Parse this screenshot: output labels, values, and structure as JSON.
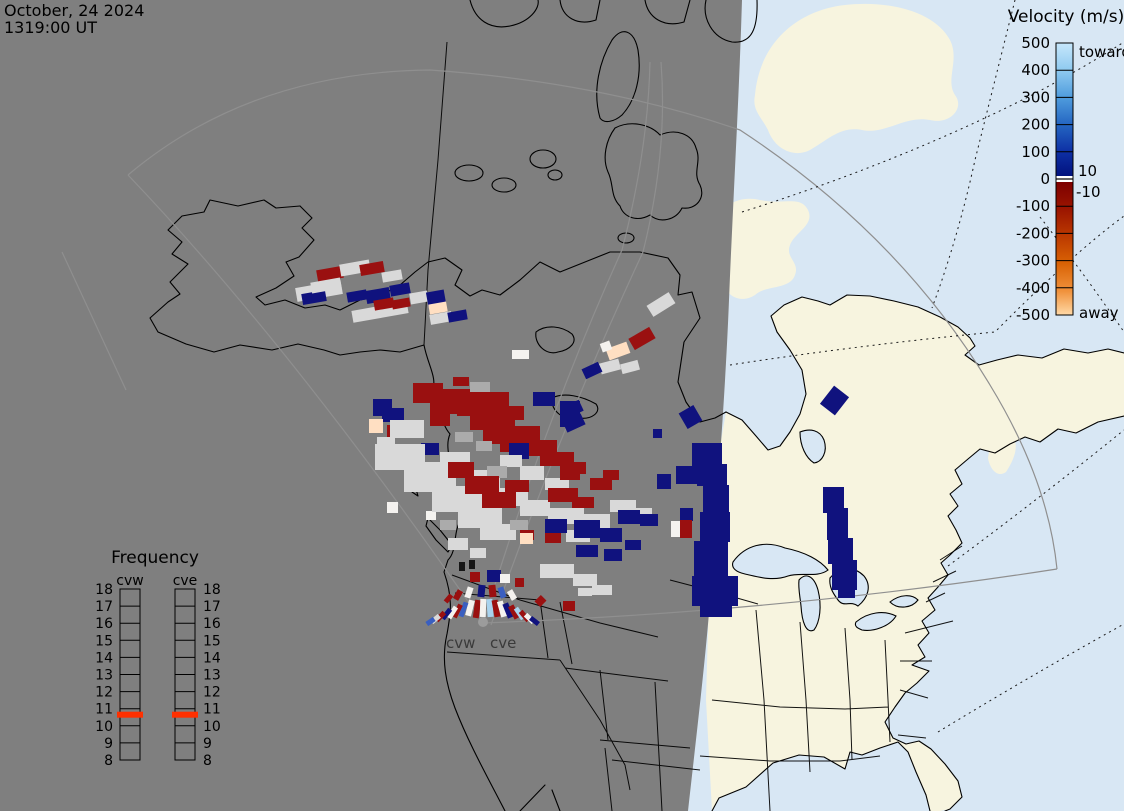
{
  "plot_title": {
    "date_line": "October, 24 2024",
    "time_line": "1319:00 UT"
  },
  "colorbar": {
    "title": "Velocity (m/s)",
    "tick_labels": [
      "500",
      "400",
      "300",
      "200",
      "100",
      "0",
      "-100",
      "-200",
      "-300",
      "-400",
      "-500"
    ],
    "toward_label": "toward",
    "away_label": "away",
    "ground_scatter_upper": "10",
    "ground_scatter_lower": "-10"
  },
  "frequency_legend": {
    "title": "Frequency",
    "columns": [
      "cvw",
      "cve"
    ],
    "tick_labels": [
      "18",
      "17",
      "16",
      "15",
      "14",
      "13",
      "12",
      "11",
      "10",
      "9",
      "8"
    ],
    "marker_value_mhz": 10.65
  },
  "map_labels": {
    "radar_west": "cvw",
    "radar_east": "cve"
  },
  "colors": {
    "night_shade": "#7f7f7f",
    "day_land": "#f7f4df",
    "day_ocean": "#d8e7f4",
    "coastline": "#000000",
    "fov_line": "#8f8f8f",
    "freq_marker": "#ff3000",
    "velocity_toward_max": "#c6e7fb",
    "velocity_toward_zero": "#02127e",
    "velocity_away_zero": "#7d0000",
    "velocity_away_max": "#ffd9a6",
    "ground_scatter": "#d9d9d9"
  },
  "cell_palette": {
    "R": "#9a1010",
    "N": "#10127e",
    "B": "#3a5fc0",
    "L": "#a9d3ee",
    "G": "#d9d9d9",
    "g": "#ababab",
    "P": "#ffdfc2",
    "W": "#f4f2ef",
    "K": "#161616"
  },
  "map_cells": [
    [
      "G",
      296,
      284,
      46,
      14,
      -10
    ],
    [
      "R",
      317,
      268,
      26,
      12,
      -10
    ],
    [
      "G",
      340,
      262,
      30,
      12,
      -10
    ],
    [
      "R",
      360,
      263,
      24,
      11,
      -10
    ],
    [
      "N",
      302,
      292,
      24,
      11,
      -10
    ],
    [
      "G",
      311,
      280,
      30,
      11,
      -10
    ],
    [
      "G",
      352,
      306,
      56,
      12,
      -10
    ],
    [
      "N",
      347,
      291,
      20,
      10,
      -10
    ],
    [
      "N",
      366,
      289,
      24,
      13,
      -10
    ],
    [
      "R",
      374,
      299,
      20,
      10,
      -10
    ],
    [
      "N",
      390,
      284,
      20,
      11,
      -10
    ],
    [
      "G",
      382,
      271,
      20,
      10,
      -10
    ],
    [
      "G",
      410,
      292,
      18,
      11,
      -10
    ],
    [
      "R",
      392,
      299,
      18,
      9,
      -10
    ],
    [
      "N",
      427,
      291,
      18,
      14,
      -10
    ],
    [
      "P",
      429,
      303,
      18,
      10,
      -10
    ],
    [
      "G",
      430,
      313,
      22,
      10,
      -10
    ],
    [
      "N",
      448,
      311,
      19,
      10,
      -10
    ],
    [
      "G",
      648,
      298,
      26,
      13,
      -32
    ],
    [
      "R",
      630,
      332,
      24,
      13,
      -30
    ],
    [
      "P",
      607,
      345,
      22,
      12,
      -20
    ],
    [
      "W",
      601,
      342,
      10,
      9,
      -20
    ],
    [
      "G",
      600,
      361,
      20,
      11,
      -15
    ],
    [
      "G",
      621,
      362,
      18,
      10,
      -15
    ],
    [
      "N",
      583,
      365,
      18,
      11,
      -25
    ],
    [
      "N",
      564,
      403,
      18,
      12,
      -25
    ],
    [
      "N",
      564,
      417,
      20,
      12,
      -25
    ],
    [
      "N",
      540,
      394,
      10,
      10,
      0
    ],
    [
      "N",
      682,
      408,
      17,
      18,
      -30
    ],
    [
      "W",
      512,
      350,
      17,
      9,
      0
    ],
    [
      "N",
      653,
      429,
      9,
      9,
      0
    ],
    [
      "N",
      373,
      399,
      19,
      17,
      0
    ],
    [
      "N",
      382,
      408,
      22,
      14,
      0
    ],
    [
      "P",
      369,
      419,
      14,
      14,
      0
    ],
    [
      "R",
      387,
      425,
      16,
      12,
      0
    ],
    [
      "G",
      377,
      437,
      18,
      12,
      0
    ],
    [
      "W",
      387,
      502,
      11,
      11,
      0
    ],
    [
      "W",
      426,
      511,
      10,
      9,
      0
    ],
    [
      "R",
      413,
      383,
      30,
      20,
      0
    ],
    [
      "R",
      443,
      389,
      40,
      14,
      0
    ],
    [
      "R",
      430,
      400,
      28,
      14,
      0
    ],
    [
      "R",
      457,
      392,
      52,
      24,
      0
    ],
    [
      "R",
      470,
      414,
      45,
      16,
      0
    ],
    [
      "R",
      498,
      406,
      26,
      12,
      0
    ],
    [
      "R",
      510,
      412,
      14,
      8,
      0
    ],
    [
      "R",
      430,
      414,
      20,
      12,
      0
    ],
    [
      "R",
      483,
      428,
      40,
      16,
      0
    ],
    [
      "R",
      510,
      426,
      30,
      14,
      0
    ],
    [
      "R",
      523,
      440,
      34,
      16,
      0
    ],
    [
      "R",
      540,
      452,
      34,
      14,
      0
    ],
    [
      "R",
      560,
      462,
      26,
      12,
      0
    ],
    [
      "R",
      500,
      440,
      26,
      12,
      0
    ],
    [
      "R",
      453,
      377,
      16,
      9,
      0
    ],
    [
      "g",
      470,
      382,
      20,
      10,
      0
    ],
    [
      "g",
      455,
      432,
      18,
      10,
      0
    ],
    [
      "g",
      476,
      441,
      16,
      10,
      0
    ],
    [
      "N",
      421,
      443,
      18,
      12,
      0
    ],
    [
      "N",
      509,
      443,
      20,
      16,
      0
    ],
    [
      "N",
      533,
      392,
      22,
      14,
      0
    ],
    [
      "N",
      560,
      401,
      20,
      26,
      0
    ],
    [
      "G",
      390,
      420,
      34,
      18,
      0
    ],
    [
      "G",
      375,
      444,
      50,
      26,
      0
    ],
    [
      "G",
      404,
      462,
      52,
      30,
      0
    ],
    [
      "G",
      432,
      486,
      50,
      26,
      0
    ],
    [
      "G",
      458,
      506,
      44,
      22,
      0
    ],
    [
      "G",
      480,
      524,
      36,
      16,
      0
    ],
    [
      "G",
      440,
      452,
      30,
      20,
      0
    ],
    [
      "G",
      466,
      470,
      34,
      20,
      0
    ],
    [
      "G",
      492,
      488,
      36,
      18,
      0
    ],
    [
      "G",
      520,
      500,
      30,
      16,
      0
    ],
    [
      "G",
      548,
      508,
      36,
      16,
      0
    ],
    [
      "G",
      580,
      514,
      30,
      14,
      0
    ],
    [
      "G",
      520,
      466,
      24,
      14,
      0
    ],
    [
      "G",
      545,
      478,
      24,
      12,
      0
    ],
    [
      "G",
      500,
      455,
      22,
      12,
      0
    ],
    [
      "G",
      610,
      500,
      26,
      12,
      0
    ],
    [
      "G",
      632,
      508,
      20,
      12,
      0
    ],
    [
      "G",
      566,
      530,
      24,
      12,
      0
    ],
    [
      "G",
      448,
      538,
      20,
      12,
      0
    ],
    [
      "G",
      470,
      548,
      16,
      10,
      0
    ],
    [
      "g",
      487,
      466,
      20,
      12,
      0
    ],
    [
      "g",
      510,
      520,
      18,
      10,
      0
    ],
    [
      "g",
      440,
      520,
      16,
      10,
      0
    ],
    [
      "R",
      448,
      462,
      26,
      16,
      0
    ],
    [
      "R",
      465,
      476,
      34,
      18,
      0
    ],
    [
      "R",
      482,
      492,
      34,
      16,
      0
    ],
    [
      "R",
      505,
      480,
      24,
      12,
      0
    ],
    [
      "R",
      548,
      488,
      30,
      14,
      0
    ],
    [
      "R",
      572,
      497,
      22,
      11,
      0
    ],
    [
      "R",
      590,
      478,
      22,
      12,
      0
    ],
    [
      "R",
      603,
      470,
      16,
      10,
      0
    ],
    [
      "R",
      520,
      530,
      14,
      10,
      0
    ],
    [
      "R",
      545,
      533,
      16,
      10,
      0
    ],
    [
      "R",
      560,
      468,
      20,
      12,
      0
    ],
    [
      "N",
      545,
      519,
      22,
      14,
      0
    ],
    [
      "N",
      574,
      520,
      26,
      18,
      0
    ],
    [
      "N",
      600,
      528,
      22,
      14,
      0
    ],
    [
      "N",
      618,
      510,
      22,
      14,
      0
    ],
    [
      "N",
      640,
      514,
      18,
      12,
      0
    ],
    [
      "N",
      576,
      545,
      22,
      12,
      0
    ],
    [
      "N",
      604,
      549,
      18,
      12,
      0
    ],
    [
      "N",
      625,
      540,
      16,
      10,
      0
    ],
    [
      "P",
      520,
      533,
      13,
      11,
      0
    ],
    [
      "G",
      540,
      564,
      34,
      14,
      0
    ],
    [
      "G",
      573,
      574,
      24,
      12,
      0
    ],
    [
      "G",
      592,
      585,
      20,
      10,
      0
    ],
    [
      "R",
      474,
      600,
      6,
      18,
      8
    ],
    [
      "W",
      467,
      600,
      6,
      16,
      14
    ],
    [
      "B",
      461,
      602,
      5,
      15,
      20
    ],
    [
      "R",
      455,
      604,
      5,
      14,
      26
    ],
    [
      "W",
      450,
      606,
      5,
      13,
      32
    ],
    [
      "N",
      444,
      608,
      5,
      12,
      38
    ],
    [
      "R",
      438,
      611,
      5,
      11,
      44
    ],
    [
      "G",
      433,
      614,
      5,
      10,
      50
    ],
    [
      "B",
      428,
      617,
      5,
      9,
      56
    ],
    [
      "W",
      480,
      599,
      6,
      18,
      2
    ],
    [
      "L",
      487,
      599,
      6,
      18,
      -4
    ],
    [
      "R",
      493,
      600,
      6,
      17,
      -10
    ],
    [
      "W",
      499,
      601,
      6,
      16,
      -16
    ],
    [
      "N",
      505,
      603,
      6,
      15,
      -22
    ],
    [
      "R",
      511,
      605,
      6,
      14,
      -28
    ],
    [
      "L",
      517,
      607,
      5,
      13,
      -34
    ],
    [
      "R",
      522,
      610,
      5,
      12,
      -40
    ],
    [
      "W",
      527,
      613,
      5,
      11,
      -46
    ],
    [
      "N",
      532,
      616,
      5,
      10,
      -52
    ],
    [
      "R",
      489,
      585,
      7,
      12,
      -6
    ],
    [
      "N",
      478,
      585,
      7,
      12,
      6
    ],
    [
      "W",
      466,
      587,
      6,
      11,
      18
    ],
    [
      "R",
      455,
      590,
      6,
      10,
      30
    ],
    [
      "B",
      499,
      587,
      6,
      11,
      -18
    ],
    [
      "W",
      509,
      590,
      6,
      10,
      -30
    ],
    [
      "R",
      446,
      594,
      5,
      9,
      40
    ],
    [
      "N",
      487,
      570,
      14,
      12,
      0
    ],
    [
      "R",
      470,
      572,
      10,
      10,
      0
    ],
    [
      "W",
      500,
      574,
      10,
      9,
      0
    ],
    [
      "R",
      515,
      578,
      9,
      9,
      0
    ],
    [
      "R",
      536,
      597,
      9,
      8,
      -45
    ],
    [
      "R",
      563,
      601,
      12,
      10,
      0
    ],
    [
      "G",
      578,
      588,
      14,
      8,
      0
    ],
    [
      "K",
      459,
      562,
      6,
      9,
      0
    ],
    [
      "K",
      469,
      560,
      6,
      9,
      0
    ],
    [
      "N",
      692,
      443,
      30,
      26,
      0
    ],
    [
      "N",
      676,
      466,
      22,
      18,
      0
    ],
    [
      "N",
      697,
      464,
      30,
      22,
      0
    ],
    [
      "N",
      703,
      485,
      26,
      28,
      0
    ],
    [
      "N",
      680,
      508,
      13,
      13,
      0
    ],
    [
      "N",
      700,
      512,
      30,
      30,
      0
    ],
    [
      "N",
      694,
      541,
      34,
      36,
      0
    ],
    [
      "N",
      692,
      576,
      46,
      30,
      0
    ],
    [
      "N",
      700,
      605,
      32,
      12,
      0
    ],
    [
      "N",
      657,
      474,
      14,
      15,
      0
    ],
    [
      "W",
      671,
      521,
      9,
      16,
      0
    ],
    [
      "R",
      680,
      520,
      12,
      18,
      0
    ],
    [
      "N",
      823,
      487,
      21,
      26,
      0
    ],
    [
      "N",
      827,
      508,
      21,
      32,
      0
    ],
    [
      "N",
      828,
      538,
      25,
      26,
      0
    ],
    [
      "N",
      832,
      560,
      25,
      30,
      0
    ],
    [
      "N",
      838,
      588,
      17,
      10,
      0
    ],
    [
      "N",
      825,
      389,
      19,
      23,
      38
    ]
  ]
}
